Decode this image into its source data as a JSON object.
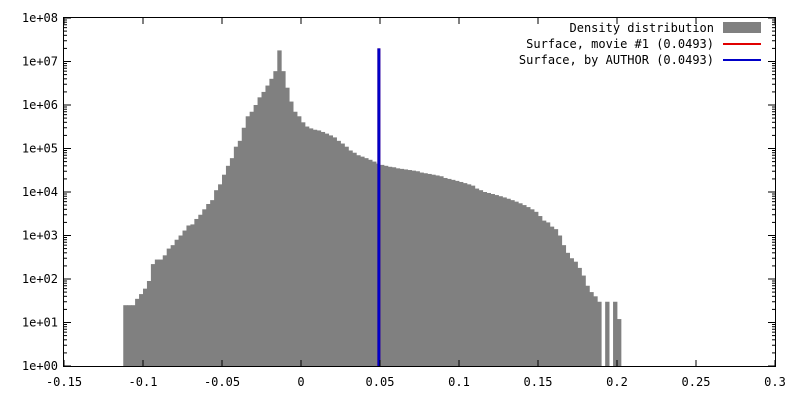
{
  "chart_data": {
    "type": "bar",
    "title": "",
    "xlabel": "",
    "ylabel": "",
    "x_scale": "linear",
    "y_scale": "log",
    "xlim": [
      -0.15,
      0.3
    ],
    "ylim": [
      1,
      100000000
    ],
    "x_ticks": [
      "-0.15",
      "-0.1",
      "-0.05",
      "0",
      "0.05",
      "0.1",
      "0.15",
      "0.2",
      "0.25",
      "0.3"
    ],
    "y_ticks": [
      "1e+00",
      "1e+01",
      "1e+02",
      "1e+03",
      "1e+04",
      "1e+05",
      "1e+06",
      "1e+07",
      "1e+08"
    ],
    "grid": false,
    "legend_position": "top-right",
    "histogram": {
      "name": "Density distribution",
      "color": "#808080",
      "bin_start": -0.1125,
      "bin_width": 0.0025,
      "counts": [
        25,
        25,
        25,
        35,
        45,
        60,
        90,
        220,
        280,
        280,
        350,
        500,
        600,
        800,
        1000,
        1300,
        1700,
        1800,
        2400,
        3000,
        4000,
        5300,
        6500,
        11000,
        15000,
        25000,
        40000,
        60000,
        110000,
        150000,
        300000,
        550000,
        700000,
        1000000,
        1500000,
        2000000,
        2800000,
        4000000,
        6000000,
        18000000,
        6000000,
        2500000,
        1200000,
        700000,
        550000,
        400000,
        320000,
        290000,
        270000,
        260000,
        240000,
        220000,
        200000,
        180000,
        150000,
        130000,
        110000,
        90000,
        80000,
        70000,
        65000,
        60000,
        55000,
        50000,
        45000,
        42000,
        40000,
        38000,
        37000,
        35000,
        34000,
        33000,
        32000,
        31000,
        30000,
        28000,
        27000,
        26000,
        25000,
        24000,
        23000,
        21000,
        20000,
        19000,
        18000,
        17000,
        16000,
        15000,
        14000,
        12000,
        11000,
        10000,
        9500,
        9000,
        8500,
        8000,
        7500,
        7000,
        6500,
        6000,
        5500,
        5000,
        4500,
        4000,
        3500,
        2800,
        2200,
        2000,
        1600,
        1400,
        1000,
        600,
        400,
        300,
        250,
        180,
        120,
        70,
        50,
        40,
        30,
        0,
        30,
        0,
        30,
        12,
        0
      ]
    },
    "series": [
      {
        "name": "Surface, movie #1 (0.0493)",
        "x": 0.0493,
        "color": "#e00000",
        "type": "vertical-line"
      },
      {
        "name": "Surface, by AUTHOR (0.0493)",
        "x": 0.0493,
        "color": "#0000c8",
        "type": "vertical-line"
      }
    ]
  }
}
